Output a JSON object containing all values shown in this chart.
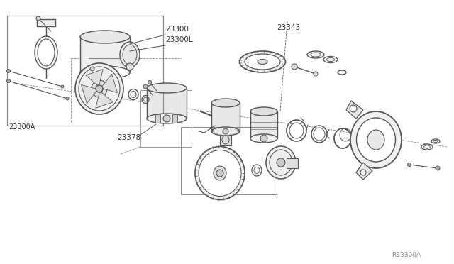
{
  "bg_color": "#ffffff",
  "line_color": "#555555",
  "dark_color": "#333333",
  "light_gray": "#cccccc",
  "medium_gray": "#888888",
  "diagram_id": "R33300A",
  "figsize": [
    6.4,
    3.72
  ],
  "dpi": 100
}
